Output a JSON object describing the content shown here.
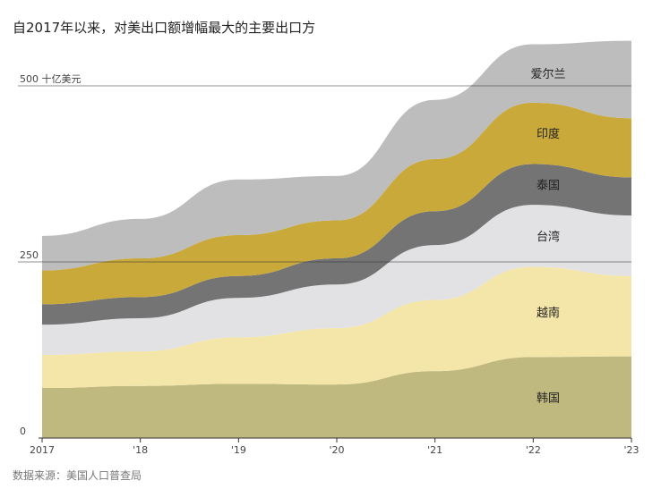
{
  "title": "自2017年以来，对美出口额增幅最大的主要出口方",
  "source": "数据来源：美国人口普查局",
  "chart_data": {
    "type": "area",
    "stacked": true,
    "title": "自2017年以来，对美出口额增幅最大的主要出口方",
    "x": [
      2017,
      2018,
      2019,
      2020,
      2021,
      2022,
      2023
    ],
    "x_tick_labels": [
      "2017",
      "'18",
      "'19",
      "'20",
      "'21",
      "'22",
      "'23"
    ],
    "y_tick_values": [
      0,
      250,
      500
    ],
    "y_tick_labels": [
      "0",
      "250",
      "500 十亿美元"
    ],
    "ylim": [
      0,
      560
    ],
    "grid": true,
    "series": [
      {
        "name": "韩国",
        "color": "#c0b97f",
        "values": [
          71,
          74,
          77,
          76,
          95,
          115,
          116
        ]
      },
      {
        "name": "越南",
        "color": "#f4e6a8",
        "values": [
          47,
          49,
          66,
          80,
          101,
          128,
          114
        ]
      },
      {
        "name": "台湾",
        "color": "#e2e2e4",
        "values": [
          43,
          47,
          56,
          62,
          78,
          88,
          86
        ]
      },
      {
        "name": "泰国",
        "color": "#747474",
        "values": [
          29,
          30,
          31,
          37,
          48,
          58,
          54
        ]
      },
      {
        "name": "印度",
        "color": "#c9a93a",
        "values": [
          48,
          55,
          58,
          54,
          74,
          87,
          84
        ]
      },
      {
        "name": "爱尔兰",
        "color": "#bdbdbd",
        "values": [
          49,
          56,
          79,
          63,
          84,
          83,
          110
        ]
      }
    ]
  }
}
